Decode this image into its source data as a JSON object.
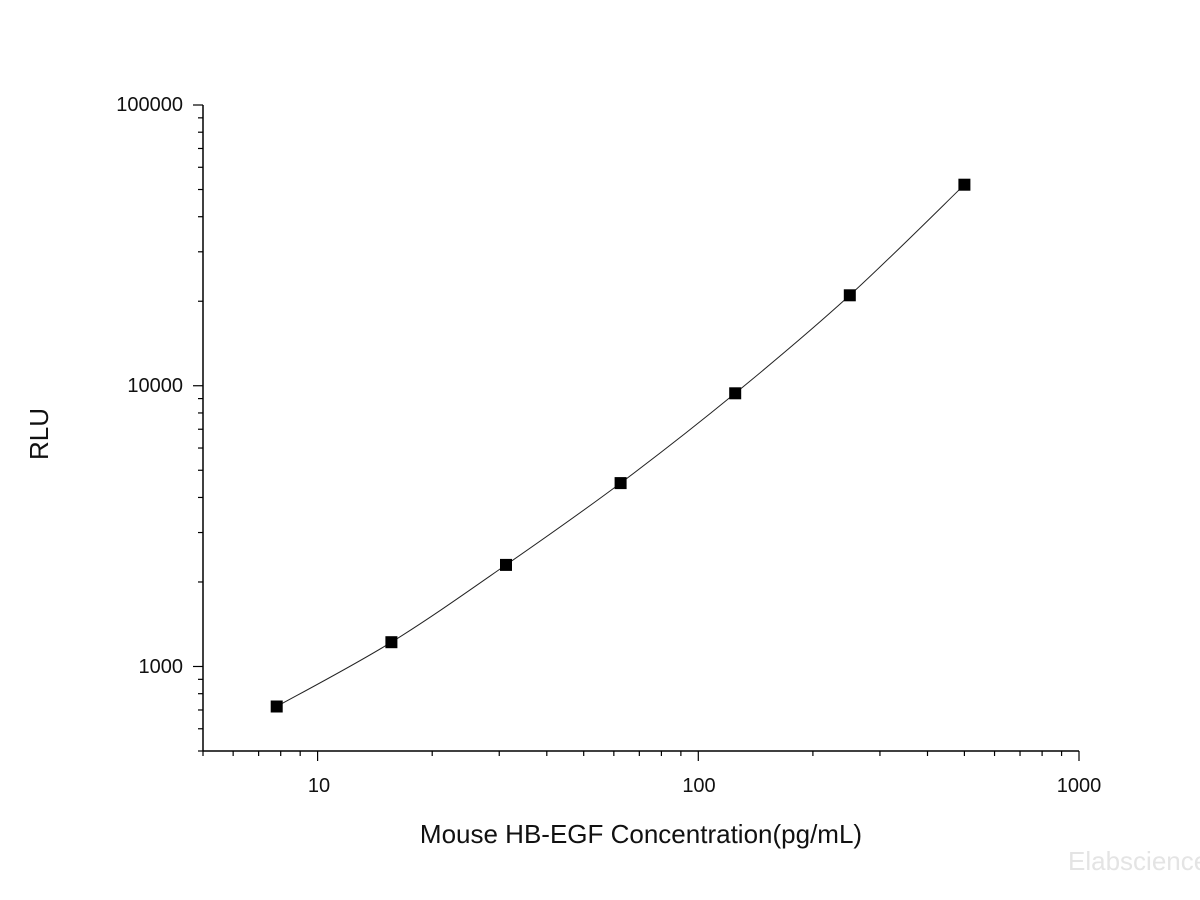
{
  "chart_data": {
    "type": "scatter",
    "title": "",
    "xlabel": "Mouse HB-EGF Concentration(pg/mL)",
    "ylabel": "RLU",
    "xscale": "log",
    "yscale": "log",
    "xlim": [
      5,
      1000
    ],
    "ylim": [
      500,
      100000
    ],
    "grid": false,
    "legend": "none",
    "x_ticks": [
      "10",
      "100",
      "1000"
    ],
    "y_ticks": [
      "1000",
      "10000",
      "100000"
    ],
    "series": [
      {
        "marker": "square",
        "line": "smooth",
        "color": "#000000",
        "x": [
          7.81,
          15.63,
          31.25,
          62.5,
          125,
          250,
          500
        ],
        "y": [
          720,
          1220,
          2300,
          4500,
          9400,
          21000,
          52000
        ]
      }
    ]
  },
  "watermark": "Elabscience"
}
